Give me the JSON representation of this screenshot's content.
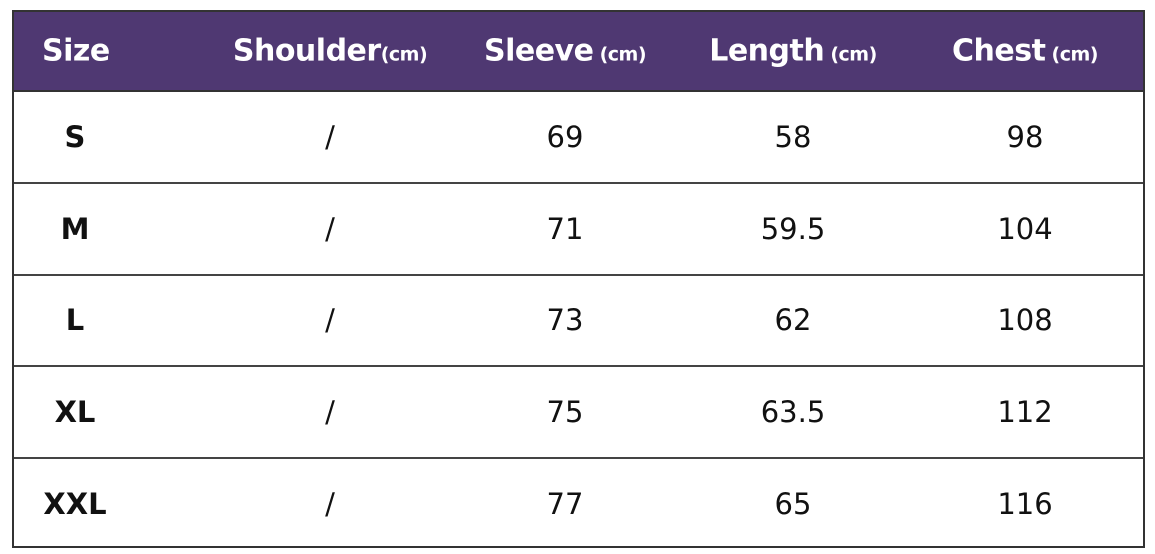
{
  "header": {
    "columns": [
      {
        "label": "Size",
        "unit": ""
      },
      {
        "label": "Shoulder",
        "unit": "(cm)"
      },
      {
        "label": "Sleeve",
        "unit": " (cm)"
      },
      {
        "label": "Length",
        "unit": " (cm)"
      },
      {
        "label": "Chest",
        "unit": " (cm)"
      }
    ],
    "background": "#4f3872"
  },
  "rows": [
    [
      "S",
      "/",
      "69",
      "58",
      "98"
    ],
    [
      "M",
      "/",
      "71",
      "59.5",
      "104"
    ],
    [
      "L",
      "/",
      "73",
      "62",
      "108"
    ],
    [
      "XL",
      "/",
      "75",
      "63.5",
      "112"
    ],
    [
      "XXL",
      "/",
      "77",
      "65",
      "116"
    ]
  ]
}
